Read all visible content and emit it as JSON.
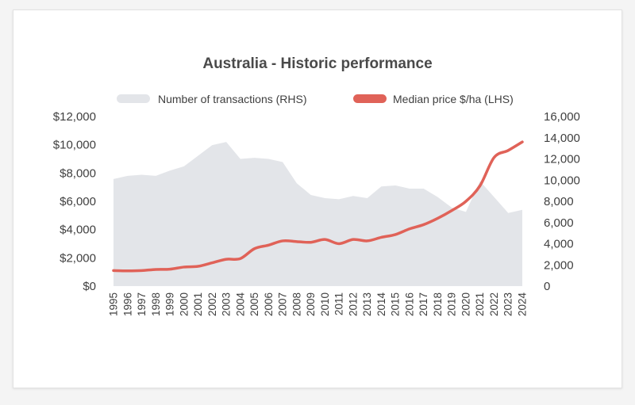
{
  "chart_data": {
    "type": "area+line",
    "title": "Australia - Historic performance",
    "legend": {
      "placement": "top",
      "items": [
        "Number of transactions (RHS)",
        "Median price $/ha (LHS)"
      ]
    },
    "categories": [
      "1995",
      "1996",
      "1997",
      "1998",
      "1999",
      "2000",
      "2001",
      "2002",
      "2003",
      "2004",
      "2005",
      "2006",
      "2007",
      "2008",
      "2009",
      "2010",
      "2011",
      "2012",
      "2013",
      "2014",
      "2015",
      "2016",
      "2017",
      "2018",
      "2019",
      "2020",
      "2021",
      "2022",
      "2023",
      "2024"
    ],
    "left_axis": {
      "ylim": [
        0,
        12000
      ],
      "ticks": [
        0,
        2000,
        4000,
        6000,
        8000,
        10000,
        12000
      ],
      "tick_labels": [
        "$0",
        "$2,000",
        "$4,000",
        "$6,000",
        "$8,000",
        "$10,000",
        "$12,000"
      ]
    },
    "right_axis": {
      "ylim": [
        0,
        16000
      ],
      "ticks": [
        0,
        2000,
        4000,
        6000,
        8000,
        10000,
        12000,
        14000,
        16000
      ],
      "tick_labels": [
        "0",
        "2,000",
        "4,000",
        "6,000",
        "8,000",
        "10,000",
        "12,000",
        "14,000",
        "16,000"
      ]
    },
    "grid": false,
    "series": [
      {
        "name": "Number of transactions (RHS)",
        "type": "area",
        "axis": "right",
        "color": "#e3e5e9",
        "values": [
          10100,
          10400,
          10500,
          10400,
          10900,
          11300,
          12300,
          13300,
          13600,
          12000,
          12100,
          12000,
          11700,
          9700,
          8600,
          8300,
          8200,
          8500,
          8300,
          9400,
          9500,
          9200,
          9200,
          8400,
          7400,
          7000,
          9900,
          8400,
          6900,
          7200
        ]
      },
      {
        "name": "Median price $/ha (LHS)",
        "type": "line",
        "axis": "left",
        "color": "#e06258",
        "values": [
          1100,
          1080,
          1100,
          1180,
          1200,
          1350,
          1400,
          1650,
          1900,
          1950,
          2650,
          2900,
          3200,
          3150,
          3100,
          3300,
          3000,
          3300,
          3200,
          3450,
          3650,
          4050,
          4350,
          4800,
          5350,
          6000,
          7100,
          9100,
          9600,
          10200
        ]
      }
    ]
  }
}
